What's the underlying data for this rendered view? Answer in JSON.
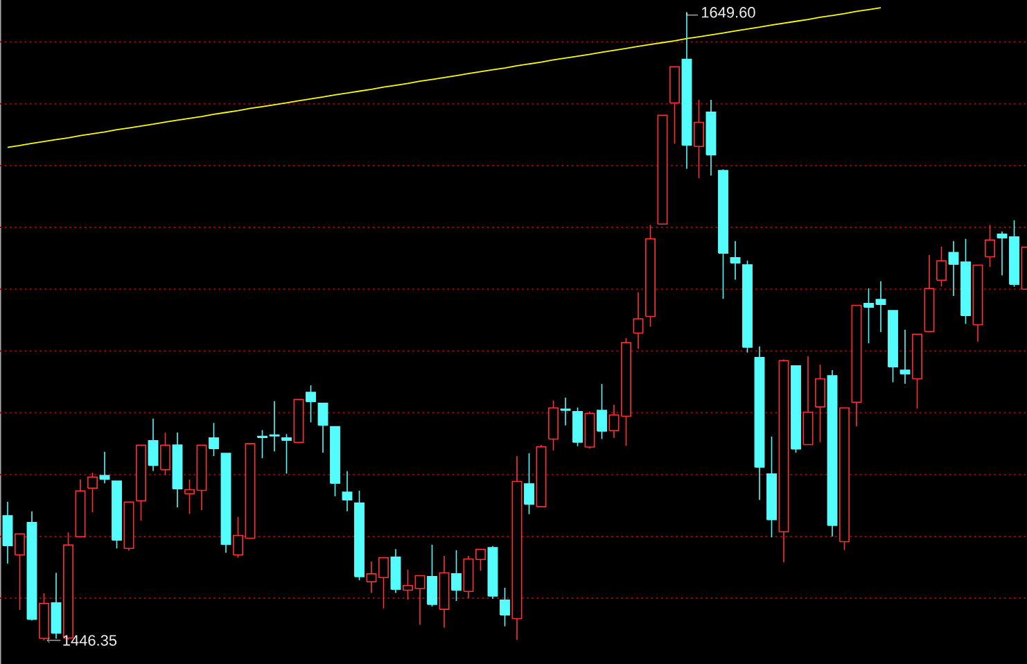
{
  "chart_data": {
    "type": "candlestick",
    "categories": [
      null,
      null,
      null,
      null,
      null,
      null,
      null,
      null,
      null,
      null,
      null,
      null,
      null,
      null,
      null,
      null,
      null,
      null,
      null,
      null,
      null,
      null,
      null,
      null,
      null,
      null,
      null,
      null,
      null,
      null,
      null,
      null,
      null,
      null,
      null,
      null,
      null,
      null,
      null,
      null,
      null,
      null,
      null,
      null,
      null,
      null,
      null,
      null,
      null,
      null,
      null,
      null,
      null,
      null,
      null,
      null,
      null,
      null,
      null,
      null,
      null,
      null,
      null,
      null,
      null,
      null,
      null,
      null,
      null,
      null,
      null,
      null,
      null,
      null,
      null,
      null,
      null,
      null,
      null,
      null,
      null,
      null,
      null,
      null,
      null
    ],
    "ohlc": [
      [
        1486.7,
        1491.2,
        1471.2,
        1477.0
      ],
      [
        1474.0,
        1480.8,
        1456.2,
        1480.8
      ],
      [
        1484.5,
        1488.1,
        1452.8,
        1453.2
      ],
      [
        1447.0,
        1461.6,
        1446.35,
        1458.3
      ],
      [
        1458.5,
        1468.2,
        1446.9,
        1448.7
      ],
      [
        1447.1,
        1481.3,
        1446.6,
        1477.2
      ],
      [
        1479.9,
        1498.4,
        1479.9,
        1494.7
      ],
      [
        1495.6,
        1500.6,
        1487.8,
        1499.2
      ],
      [
        1499.7,
        1507.4,
        1497.2,
        1498.5
      ],
      [
        1497.9,
        1497.9,
        1476.1,
        1478.8
      ],
      [
        1476.1,
        1491.1,
        1475.4,
        1491.1
      ],
      [
        1491.5,
        1509.5,
        1485.1,
        1509.5
      ],
      [
        1511.0,
        1518.1,
        1501.2,
        1503.0
      ],
      [
        1501.6,
        1513.6,
        1499.9,
        1509.5
      ],
      [
        1509.6,
        1513.6,
        1489.4,
        1495.4
      ],
      [
        1493.8,
        1498.4,
        1487.3,
        1495.1
      ],
      [
        1494.9,
        1509.5,
        1488.5,
        1509.5
      ],
      [
        1511.9,
        1516.7,
        1506.0,
        1508.4
      ],
      [
        1506.9,
        1506.9,
        1474.7,
        1477.4
      ],
      [
        1474.0,
        1486.3,
        1473.1,
        1480.3
      ],
      [
        1479.4,
        1510.0,
        1479.4,
        1510.0
      ],
      [
        1512.4,
        1514.4,
        1505.3,
        1512.0
      ],
      [
        1512.8,
        1523.8,
        1507.5,
        1512.5
      ],
      [
        1511.9,
        1513.1,
        1500.3,
        1511.1
      ],
      [
        1510.4,
        1524.3,
        1510.4,
        1524.3
      ],
      [
        1526.6,
        1528.9,
        1516.9,
        1523.6
      ],
      [
        1523.1,
        1523.1,
        1507.1,
        1516.0
      ],
      [
        1515.5,
        1515.5,
        1493.0,
        1497.2
      ],
      [
        1494.3,
        1501.1,
        1488.1,
        1491.8
      ],
      [
        1490.8,
        1494.8,
        1465.8,
        1467.0
      ],
      [
        1465.3,
        1471.9,
        1461.7,
        1467.9
      ],
      [
        1466.7,
        1473.1,
        1456.7,
        1473.1
      ],
      [
        1473.3,
        1475.9,
        1461.7,
        1462.9
      ],
      [
        1462.6,
        1469.2,
        1459.5,
        1464.1
      ],
      [
        1463.1,
        1467.3,
        1451.4,
        1467.3
      ],
      [
        1467.0,
        1477.3,
        1457.3,
        1458.0
      ],
      [
        1456.4,
        1473.7,
        1450.5,
        1468.2
      ],
      [
        1467.9,
        1475.5,
        1459.1,
        1462.6
      ],
      [
        1462.2,
        1473.7,
        1460.0,
        1472.7
      ],
      [
        1472.5,
        1475.8,
        1468.9,
        1475.8
      ],
      [
        1476.4,
        1476.9,
        1459.8,
        1460.7
      ],
      [
        1459.4,
        1463.4,
        1450.9,
        1454.6
      ],
      [
        1453.4,
        1506.0,
        1446.5,
        1497.8
      ],
      [
        1497.0,
        1506.9,
        1487.2,
        1490.4
      ],
      [
        1489.6,
        1509.6,
        1489.6,
        1509.0
      ],
      [
        1511.5,
        1524.0,
        1507.8,
        1521.6
      ],
      [
        1521.2,
        1524.9,
        1515.9,
        1520.8
      ],
      [
        1520.4,
        1521.7,
        1509.2,
        1510.5
      ],
      [
        1508.9,
        1520.4,
        1508.4,
        1519.8
      ],
      [
        1520.8,
        1529.3,
        1511.5,
        1514.1
      ],
      [
        1514.2,
        1522.6,
        1511.9,
        1519.3
      ],
      [
        1518.9,
        1544.2,
        1509.3,
        1542.7
      ],
      [
        1545.8,
        1559.0,
        1540.7,
        1550.4
      ],
      [
        1551.2,
        1580.8,
        1547.9,
        1576.3
      ],
      [
        1581.1,
        1616.3,
        1581.1,
        1616.3
      ],
      [
        1620.3,
        1632.0,
        1607.1,
        1632.0
      ],
      [
        1634.4,
        1649.6,
        1599.0,
        1606.6
      ],
      [
        1606.2,
        1621.3,
        1595.9,
        1614.0
      ],
      [
        1617.3,
        1621.3,
        1596.8,
        1603.5
      ],
      [
        1598.4,
        1598.8,
        1556.9,
        1571.7
      ],
      [
        1570.2,
        1575.6,
        1563.1,
        1568.5
      ],
      [
        1567.9,
        1569.3,
        1539.5,
        1541.2
      ],
      [
        1537.9,
        1541.5,
        1491.8,
        1502.4
      ],
      [
        1500.2,
        1512.3,
        1479.7,
        1485.4
      ],
      [
        1481.5,
        1537.3,
        1471.6,
        1536.9
      ],
      [
        1535.2,
        1535.2,
        1507.1,
        1508.3
      ],
      [
        1509.7,
        1538.3,
        1509.7,
        1520.2
      ],
      [
        1521.9,
        1535.6,
        1510.5,
        1531.0
      ],
      [
        1532.0,
        1533.8,
        1480.0,
        1483.6
      ],
      [
        1478.3,
        1521.6,
        1475.6,
        1521.6
      ],
      [
        1523.4,
        1554.8,
        1515.6,
        1554.8
      ],
      [
        1555.4,
        1560.3,
        1542.5,
        1554.2
      ],
      [
        1556.7,
        1562.6,
        1546.1,
        1555.1
      ],
      [
        1553.1,
        1553.1,
        1529.9,
        1534.9
      ],
      [
        1533.8,
        1546.9,
        1529.4,
        1532.6
      ],
      [
        1531.0,
        1545.4,
        1521.4,
        1545.4
      ],
      [
        1546.3,
        1571.1,
        1546.3,
        1560.2
      ],
      [
        1562.9,
        1573.8,
        1560.9,
        1569.2
      ],
      [
        1571.9,
        1575.6,
        1557.8,
        1568.1
      ],
      [
        1568.8,
        1576.3,
        1548.8,
        1551.5
      ],
      [
        1548.5,
        1567.8,
        1543.0,
        1567.8
      ],
      [
        1570.5,
        1580.8,
        1567.2,
        1575.9
      ],
      [
        1577.8,
        1578.7,
        1564.5,
        1576.6
      ],
      [
        1576.9,
        1582.3,
        1560.8,
        1561.6
      ],
      [
        1560.0,
        1573.6,
        1560.0,
        1573.6
      ]
    ],
    "colors": [
      "#54fcfc",
      "#ff3232",
      "#54fcfc",
      "#ff3232",
      "#54fcfc",
      "#ff3232",
      "#ff3232",
      "#ff3232",
      "#54fcfc",
      "#54fcfc",
      "#ff3232",
      "#ff3232",
      "#54fcfc",
      "#ff3232",
      "#54fcfc",
      "#ff3232",
      "#ff3232",
      "#54fcfc",
      "#54fcfc",
      "#ff3232",
      "#ff3232",
      "#54fcfc",
      "#54fcfc",
      "#54fcfc",
      "#ff3232",
      "#54fcfc",
      "#54fcfc",
      "#54fcfc",
      "#54fcfc",
      "#54fcfc",
      "#ff3232",
      "#ff3232",
      "#54fcfc",
      "#ff3232",
      "#ff3232",
      "#54fcfc",
      "#ff3232",
      "#54fcfc",
      "#ff3232",
      "#ff3232",
      "#54fcfc",
      "#54fcfc",
      "#ff3232",
      "#54fcfc",
      "#ff3232",
      "#ff3232",
      "#54fcfc",
      "#54fcfc",
      "#ff3232",
      "#54fcfc",
      "#ff3232",
      "#ff3232",
      "#ff3232",
      "#ff3232",
      "#ff3232",
      "#ff3232",
      "#54fcfc",
      "#ff3232",
      "#54fcfc",
      "#54fcfc",
      "#54fcfc",
      "#54fcfc",
      "#54fcfc",
      "#54fcfc",
      "#ff3232",
      "#54fcfc",
      "#ff3232",
      "#ff3232",
      "#54fcfc",
      "#ff3232",
      "#ff3232",
      "#54fcfc",
      "#54fcfc",
      "#54fcfc",
      "#54fcfc",
      "#ff3232",
      "#ff3232",
      "#ff3232",
      "#54fcfc",
      "#54fcfc",
      "#ff3232",
      "#ff3232",
      "#54fcfc",
      "#54fcfc",
      "#ff3232"
    ],
    "series": [
      {
        "type": "line",
        "values": [
          1605.9,
          1606.5,
          1607.2,
          1607.8,
          1608.4,
          1609.0,
          1609.7,
          1610.3,
          1610.9,
          1611.6,
          1612.2,
          1612.8,
          1613.4,
          1614.1,
          1614.7,
          1615.3,
          1615.9,
          1616.6,
          1617.2,
          1617.8,
          1618.5,
          1619.1,
          1619.7,
          1620.3,
          1621.0,
          1621.6,
          1622.2,
          1622.9,
          1623.5,
          1624.1,
          1624.7,
          1625.4,
          1626.0,
          1626.6,
          1627.3,
          1627.9,
          1628.5,
          1629.1,
          1629.8,
          1630.4,
          1631.0,
          1631.6,
          1632.3,
          1632.9,
          1633.5,
          1634.2,
          1634.8,
          1635.4,
          1636.0,
          1636.7,
          1637.3,
          1637.9,
          1638.6,
          1639.2,
          1639.8,
          1640.4,
          1641.1,
          1641.7,
          1642.3,
          1642.9,
          1643.6,
          1644.2,
          1644.8,
          1645.5,
          1646.1,
          1646.7,
          1647.3,
          1648.0,
          1648.6,
          1649.2,
          1649.9,
          1650.5,
          1651.1,
          null,
          null,
          null,
          null,
          null,
          null,
          null,
          null,
          null,
          null,
          null,
          null
        ],
        "color": "#ffff00"
      }
    ],
    "ylim": [
      1438.7,
      1653.6
    ],
    "yticks": [
      {
        "value": 1460,
        "label": null
      },
      {
        "value": 1480,
        "label": null
      },
      {
        "value": 1500,
        "label": null
      },
      {
        "value": 1520,
        "label": null
      },
      {
        "value": 1540,
        "label": null
      },
      {
        "value": 1560,
        "label": null
      },
      {
        "value": 1580,
        "label": null
      },
      {
        "value": 1600,
        "label": null
      },
      {
        "value": 1620,
        "label": null
      },
      {
        "value": 1640,
        "label": null
      }
    ],
    "grid": "y",
    "annotations": [
      "1649.60",
      "1446.35"
    ]
  }
}
